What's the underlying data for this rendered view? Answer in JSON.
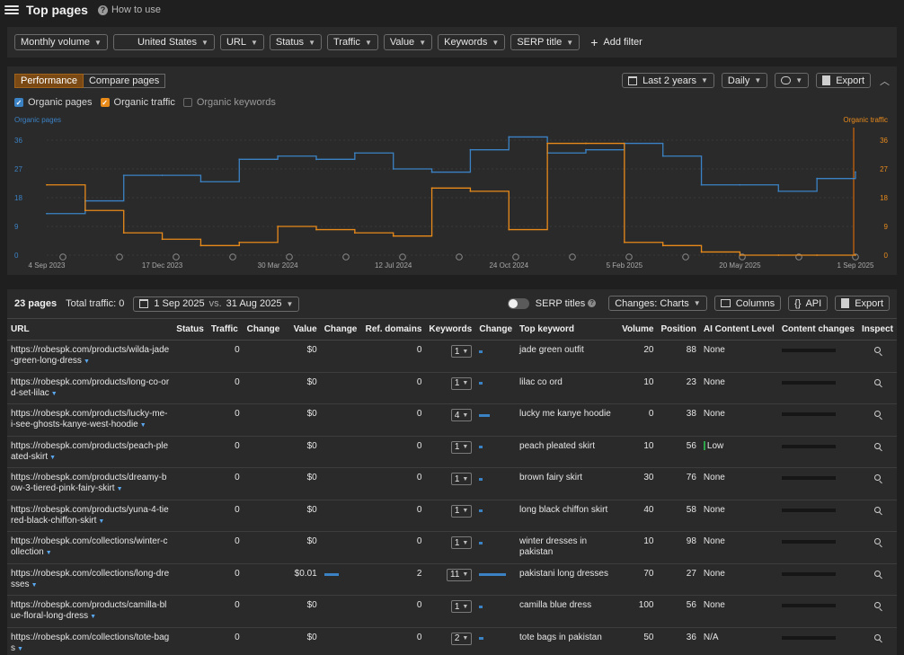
{
  "header": {
    "title": "Top pages",
    "how_to_use": "How to use"
  },
  "filters": {
    "items": [
      "Monthly volume",
      "United States",
      "URL",
      "Status",
      "Traffic",
      "Value",
      "Keywords",
      "SERP title"
    ],
    "add_filter": "Add filter"
  },
  "chart_panel": {
    "tabs": [
      "Performance",
      "Compare pages"
    ],
    "period": "Last 2 years",
    "granularity": "Daily",
    "export": "Export",
    "legend": [
      {
        "label": "Organic pages",
        "checked": true,
        "color": "#3b82c4"
      },
      {
        "label": "Organic traffic",
        "checked": true,
        "color": "#e88a1a"
      },
      {
        "label": "Organic keywords",
        "checked": false,
        "color": "#6a6a6a"
      }
    ]
  },
  "chart_data": {
    "type": "line",
    "left_axis_label": "Organic pages",
    "right_axis_label": "Organic traffic",
    "y_ticks": [
      "36",
      "27",
      "18",
      "9",
      "0"
    ],
    "y_tick_values": [
      36,
      27,
      18,
      9,
      0
    ],
    "ylim": [
      0,
      36
    ],
    "x_tick_labels": [
      "4 Sep 2023",
      "17 Dec 2023",
      "30 Mar 2024",
      "12 Jul 2024",
      "24 Oct 2024",
      "5 Feb 2025",
      "20 May 2025",
      "1 Sep 2025"
    ],
    "x": [
      "4 Sep 2023",
      "1 Oct 2023",
      "20 Nov 2023",
      "17 Dec 2023",
      "20 Jan 2024",
      "25 Feb 2024",
      "30 Mar 2024",
      "1 May 2024",
      "8 Jun 2024",
      "12 Jul 2024",
      "10 Aug 2024",
      "10 Sep 2024",
      "24 Oct 2024",
      "20 Nov 2024",
      "31 Dec 2024",
      "5 Feb 2025",
      "20 Mar 2025",
      "20 Apr 2025",
      "20 May 2025",
      "20 Jun 2025",
      "20 Jul 2025",
      "1 Sep 2025"
    ],
    "series": [
      {
        "name": "Organic pages",
        "color": "#3b82c4",
        "values": [
          13,
          17,
          25,
          25,
          23,
          30,
          31,
          30,
          32,
          27,
          26,
          33,
          37,
          32,
          33,
          35,
          31,
          22,
          22,
          20,
          24,
          26
        ]
      },
      {
        "name": "Organic traffic",
        "color": "#e88a1a",
        "values": [
          22,
          14,
          7,
          5,
          3,
          4,
          9,
          8,
          7,
          6,
          21,
          20,
          8,
          35,
          35,
          4,
          3,
          1,
          0,
          0,
          0,
          0
        ]
      }
    ],
    "annotation_markers": 15,
    "grid": true
  },
  "table_panel": {
    "pages_count": "23 pages",
    "total_traffic": "Total traffic: 0",
    "date_from": "1 Sep 2025",
    "vs": "vs.",
    "date_to": "31 Aug 2025",
    "serp_titles": "SERP titles",
    "changes_btn": "Changes: Charts",
    "columns_btn": "Columns",
    "api_btn": "API",
    "export_btn": "Export",
    "columns": [
      "URL",
      "Status",
      "Traffic",
      "Change",
      "Value",
      "Change",
      "Ref. domains",
      "Keywords",
      "Change",
      "Top keyword",
      "Volume",
      "Position",
      "AI Content Level",
      "Content changes",
      "Inspect"
    ],
    "rows": [
      {
        "url": "https://robespk.com/products/wilda-jade-green-long-dress",
        "traffic": "0",
        "value": "$0",
        "value_change": 0,
        "ref": "0",
        "kw": "1",
        "kw_change": 4,
        "top_kw": "jade green outfit",
        "volume": "20",
        "position": "88",
        "ai": "None"
      },
      {
        "url": "https://robespk.com/products/long-co-ord-set-lilac",
        "traffic": "0",
        "value": "$0",
        "value_change": 0,
        "ref": "0",
        "kw": "1",
        "kw_change": 4,
        "top_kw": "lilac co ord",
        "volume": "10",
        "position": "23",
        "ai": "None"
      },
      {
        "url": "https://robespk.com/products/lucky-me-i-see-ghosts-kanye-west-hoodie",
        "traffic": "0",
        "value": "$0",
        "value_change": 0,
        "ref": "0",
        "kw": "4",
        "kw_change": 12,
        "top_kw": "lucky me kanye hoodie",
        "volume": "0",
        "position": "38",
        "ai": "None"
      },
      {
        "url": "https://robespk.com/products/peach-pleated-skirt",
        "traffic": "0",
        "value": "$0",
        "value_change": 0,
        "ref": "0",
        "kw": "1",
        "kw_change": 4,
        "top_kw": "peach pleated skirt",
        "volume": "10",
        "position": "56",
        "ai": "Low"
      },
      {
        "url": "https://robespk.com/products/dreamy-bow-3-tiered-pink-fairy-skirt",
        "traffic": "0",
        "value": "$0",
        "value_change": 0,
        "ref": "0",
        "kw": "1",
        "kw_change": 4,
        "top_kw": "brown fairy skirt",
        "volume": "30",
        "position": "76",
        "ai": "None"
      },
      {
        "url": "https://robespk.com/products/yuna-4-tiered-black-chiffon-skirt",
        "traffic": "0",
        "value": "$0",
        "value_change": 0,
        "ref": "0",
        "kw": "1",
        "kw_change": 4,
        "top_kw": "long black chiffon skirt",
        "volume": "40",
        "position": "58",
        "ai": "None"
      },
      {
        "url": "https://robespk.com/collections/winter-collection",
        "traffic": "0",
        "value": "$0",
        "value_change": 0,
        "ref": "0",
        "kw": "1",
        "kw_change": 4,
        "top_kw": "winter dresses in pakistan",
        "volume": "10",
        "position": "98",
        "ai": "None"
      },
      {
        "url": "https://robespk.com/collections/long-dresses",
        "traffic": "0",
        "value": "$0.01",
        "value_change": 16,
        "ref": "2",
        "kw": "11",
        "kw_change": 30,
        "top_kw": "pakistani long dresses",
        "volume": "70",
        "position": "27",
        "ai": "None"
      },
      {
        "url": "https://robespk.com/products/camilla-blue-floral-long-dress",
        "traffic": "0",
        "value": "$0",
        "value_change": 0,
        "ref": "0",
        "kw": "1",
        "kw_change": 4,
        "top_kw": "camilla blue dress",
        "volume": "100",
        "position": "56",
        "ai": "None"
      },
      {
        "url": "https://robespk.com/collections/tote-bags",
        "traffic": "0",
        "value": "$0",
        "value_change": 0,
        "ref": "0",
        "kw": "2",
        "kw_change": 5,
        "top_kw": "tote bags in pakistan",
        "volume": "50",
        "position": "36",
        "ai": "N/A"
      }
    ]
  }
}
